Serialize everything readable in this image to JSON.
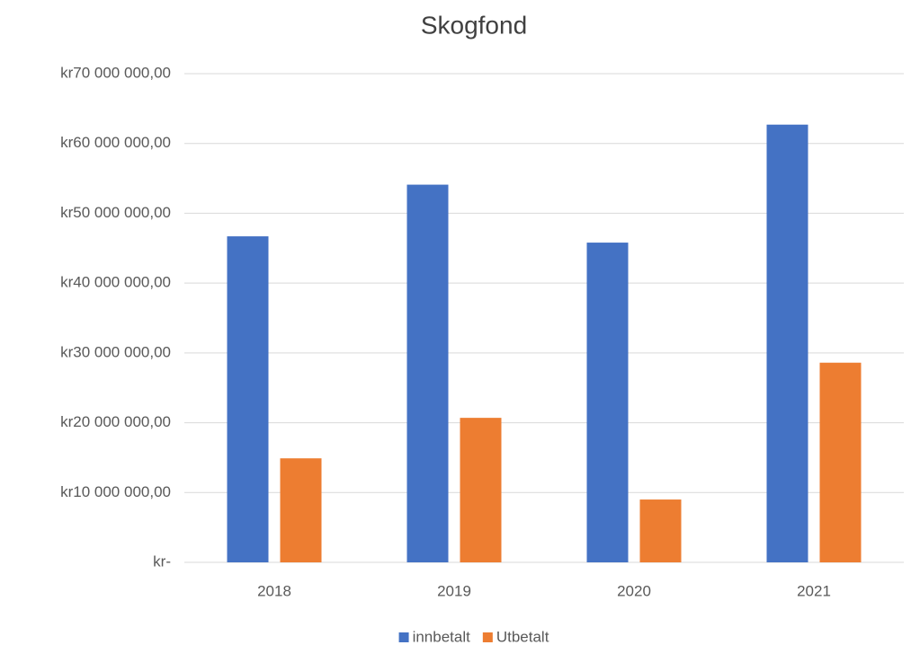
{
  "chart_data": {
    "type": "bar",
    "title": "Skogfond",
    "categories": [
      "2018",
      "2019",
      "2020",
      "2021"
    ],
    "series": [
      {
        "name": "innbetalt",
        "color": "#4472c4",
        "values": [
          46700000,
          54100000,
          45800000,
          62700000
        ]
      },
      {
        "name": "Utbetalt",
        "color": "#ed7d31",
        "values": [
          14900000,
          20700000,
          9000000,
          28600000
        ]
      }
    ],
    "ylim": [
      0,
      70000000
    ],
    "yticks": [
      {
        "value": 0,
        "label": "kr-"
      },
      {
        "value": 10000000,
        "label": "kr10 000 000,00"
      },
      {
        "value": 20000000,
        "label": "kr20 000 000,00"
      },
      {
        "value": 30000000,
        "label": "kr30 000 000,00"
      },
      {
        "value": 40000000,
        "label": "kr40 000 000,00"
      },
      {
        "value": 50000000,
        "label": "kr50 000 000,00"
      },
      {
        "value": 60000000,
        "label": "kr60 000 000,00"
      },
      {
        "value": 70000000,
        "label": "kr70 000 000,00"
      }
    ],
    "grid": true,
    "legend": "bottom"
  }
}
